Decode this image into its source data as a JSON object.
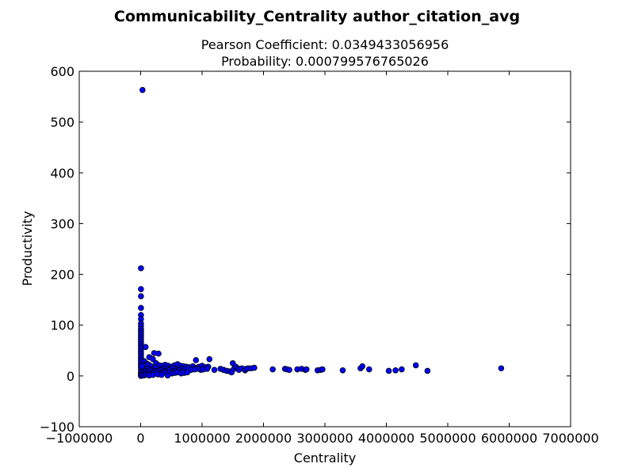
{
  "chart_data": {
    "type": "scatter",
    "title": "Communicability_Centrality author_citation_avg",
    "subtitle_lines": [
      "Pearson Coefficient: 0.0349433056956",
      "Probability: 0.000799576765026"
    ],
    "xlabel": "Centrality",
    "ylabel": "Productivity",
    "xlim": [
      -1000000,
      7000000
    ],
    "ylim": [
      -100,
      600
    ],
    "xticks": [
      -1000000,
      0,
      1000000,
      2000000,
      3000000,
      4000000,
      5000000,
      6000000,
      7000000
    ],
    "xtick_labels": [
      "−1000000",
      "0",
      "1000000",
      "2000000",
      "3000000",
      "4000000",
      "5000000",
      "6000000",
      "7000000"
    ],
    "yticks": [
      -100,
      0,
      100,
      200,
      300,
      400,
      500,
      600
    ],
    "ytick_labels": [
      "−100",
      "0",
      "100",
      "200",
      "300",
      "400",
      "500",
      "600"
    ],
    "grid": false,
    "marker_color": "#0000ff",
    "points": {
      "x": [
        30000,
        5000,
        5000,
        5000,
        5000,
        5000,
        5000,
        5000,
        5000,
        5000,
        5000,
        5000,
        5000,
        5000,
        5000,
        5000,
        5000,
        5000,
        5000,
        5000,
        5000,
        5000,
        5000,
        5000,
        5000,
        5000,
        5000,
        5000,
        5000,
        5000,
        5000,
        5000,
        5000,
        5000,
        80000,
        220000,
        290000,
        140000,
        200000,
        60000,
        100000,
        40000,
        20000,
        120000,
        160000,
        250000,
        300000,
        350000,
        400000,
        450000,
        500000,
        550000,
        600000,
        650000,
        700000,
        750000,
        800000,
        850000,
        900000,
        950000,
        1000000,
        1050000,
        1100000,
        120000,
        180000,
        240000,
        320000,
        380000,
        420000,
        480000,
        520000,
        580000,
        620000,
        680000,
        720000,
        780000,
        820000,
        880000,
        940000,
        980000,
        1020000,
        1080000,
        60000,
        110000,
        150000,
        190000,
        230000,
        270000,
        330000,
        370000,
        430000,
        470000,
        530000,
        570000,
        630000,
        670000,
        30000,
        70000,
        90000,
        130000,
        170000,
        210000,
        260000,
        310000,
        360000,
        410000,
        460000,
        510000,
        560000,
        610000,
        660000,
        710000,
        760000,
        20000,
        50000,
        80000,
        110000,
        140000,
        200000,
        280000,
        340000,
        440000,
        900000,
        1120000,
        1200000,
        1300000,
        1350000,
        1400000,
        1450000,
        1480000,
        1500000,
        1520000,
        1550000,
        1580000,
        1600000,
        1650000,
        1700000,
        1720000,
        1750000,
        1800000,
        1850000,
        2150000,
        2350000,
        2380000,
        2420000,
        2550000,
        2620000,
        2680000,
        2700000,
        2880000,
        2930000,
        2960000,
        3290000,
        3580000,
        3610000,
        3720000,
        4040000,
        4150000,
        4250000,
        4480000,
        4670000,
        5870000
      ],
      "y": [
        563,
        212,
        171,
        157,
        134,
        120,
        112,
        103,
        98,
        92,
        88,
        84,
        80,
        76,
        72,
        68,
        64,
        60,
        56,
        52,
        48,
        44,
        40,
        36,
        32,
        28,
        24,
        20,
        16,
        12,
        8,
        4,
        2,
        0,
        57,
        45,
        44,
        37,
        33,
        29,
        24,
        21,
        19,
        23,
        20,
        25,
        21,
        20,
        22,
        20,
        18,
        21,
        23,
        20,
        19,
        18,
        17,
        19,
        16,
        18,
        20,
        17,
        18,
        15,
        14,
        16,
        13,
        15,
        14,
        13,
        15,
        14,
        12,
        14,
        13,
        15,
        12,
        13,
        14,
        12,
        13,
        14,
        10,
        9,
        11,
        10,
        9,
        10,
        11,
        9,
        10,
        11,
        9,
        10,
        11,
        9,
        6,
        5,
        7,
        6,
        5,
        6,
        7,
        5,
        6,
        7,
        6,
        5,
        6,
        7,
        5,
        6,
        7,
        2,
        1,
        3,
        2,
        1,
        2,
        3,
        2,
        1,
        31,
        33,
        12,
        14,
        12,
        10,
        9,
        7,
        25,
        14,
        18,
        15,
        12,
        15,
        11,
        14,
        15,
        15,
        16,
        13,
        14,
        13,
        12,
        13,
        14,
        12,
        13,
        11,
        12,
        13,
        11,
        15,
        19,
        13,
        10,
        11,
        13,
        21,
        10,
        15
      ]
    }
  }
}
